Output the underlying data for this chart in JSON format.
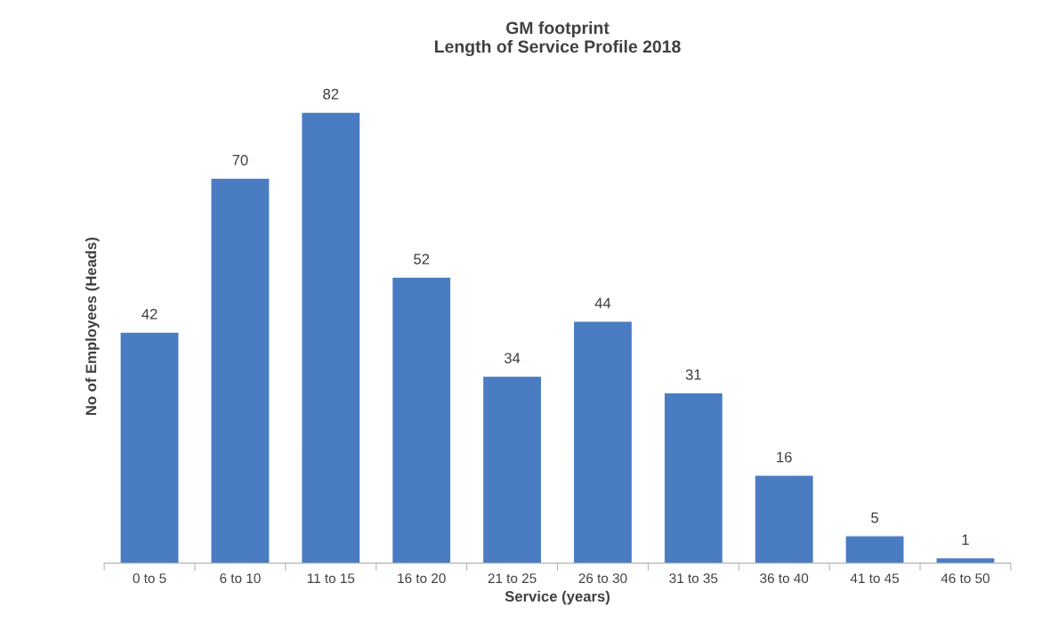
{
  "chart_data": {
    "type": "bar",
    "title": "GM footprint\nLength of Service Profile 2018",
    "xlabel": "Service (years)",
    "ylabel": "No of Employees (Heads)",
    "categories": [
      "0 to 5",
      "6 to 10",
      "11 to 15",
      "16 to 20",
      "21 to 25",
      "26 to 30",
      "31 to 35",
      "36 to 40",
      "41 to 45",
      "46 to 50"
    ],
    "values": [
      42,
      70,
      82,
      52,
      34,
      44,
      31,
      16,
      5,
      1
    ],
    "color": "#4a7cc2",
    "data_labels": true,
    "tick_labels": "x",
    "grid": false,
    "legend": false
  }
}
